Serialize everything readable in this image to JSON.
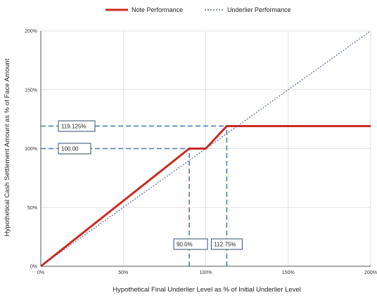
{
  "chart_data": {
    "type": "line",
    "xlabel": "Hypothetical Final Underlier Level as % of Initial Underlier Level",
    "ylabel": "Hypothetical Cash Settlement Amount as % of Face Amount",
    "xlim": [
      0,
      200
    ],
    "ylim": [
      0,
      200
    ],
    "x_ticks": [
      "0%",
      "50%",
      "100%",
      "150%",
      "200%"
    ],
    "y_ticks": [
      "0%",
      "50%",
      "100%",
      "150%",
      "200%"
    ],
    "grid": true,
    "legend_position": "top-center",
    "series": [
      {
        "name": "Note Performance",
        "color": "#cc2a1f",
        "style": "solid",
        "x": [
          0,
          90,
          100,
          112.75,
          200
        ],
        "y": [
          0,
          100,
          100,
          119.125,
          119.125
        ]
      },
      {
        "name": "Underlier Performance",
        "color": "#3a4f8c",
        "style": "dotted",
        "x": [
          0,
          200
        ],
        "y": [
          0,
          200
        ]
      }
    ],
    "annotations": [
      {
        "label": "119.125%",
        "axis": "y",
        "value": 119.125
      },
      {
        "label": "100.00",
        "axis": "y",
        "value": 100
      },
      {
        "label": "90.0%",
        "axis": "x",
        "value": 90
      },
      {
        "label": "112.75%",
        "axis": "x",
        "value": 112.75
      }
    ],
    "annotation_color": "#4a7fb5"
  }
}
